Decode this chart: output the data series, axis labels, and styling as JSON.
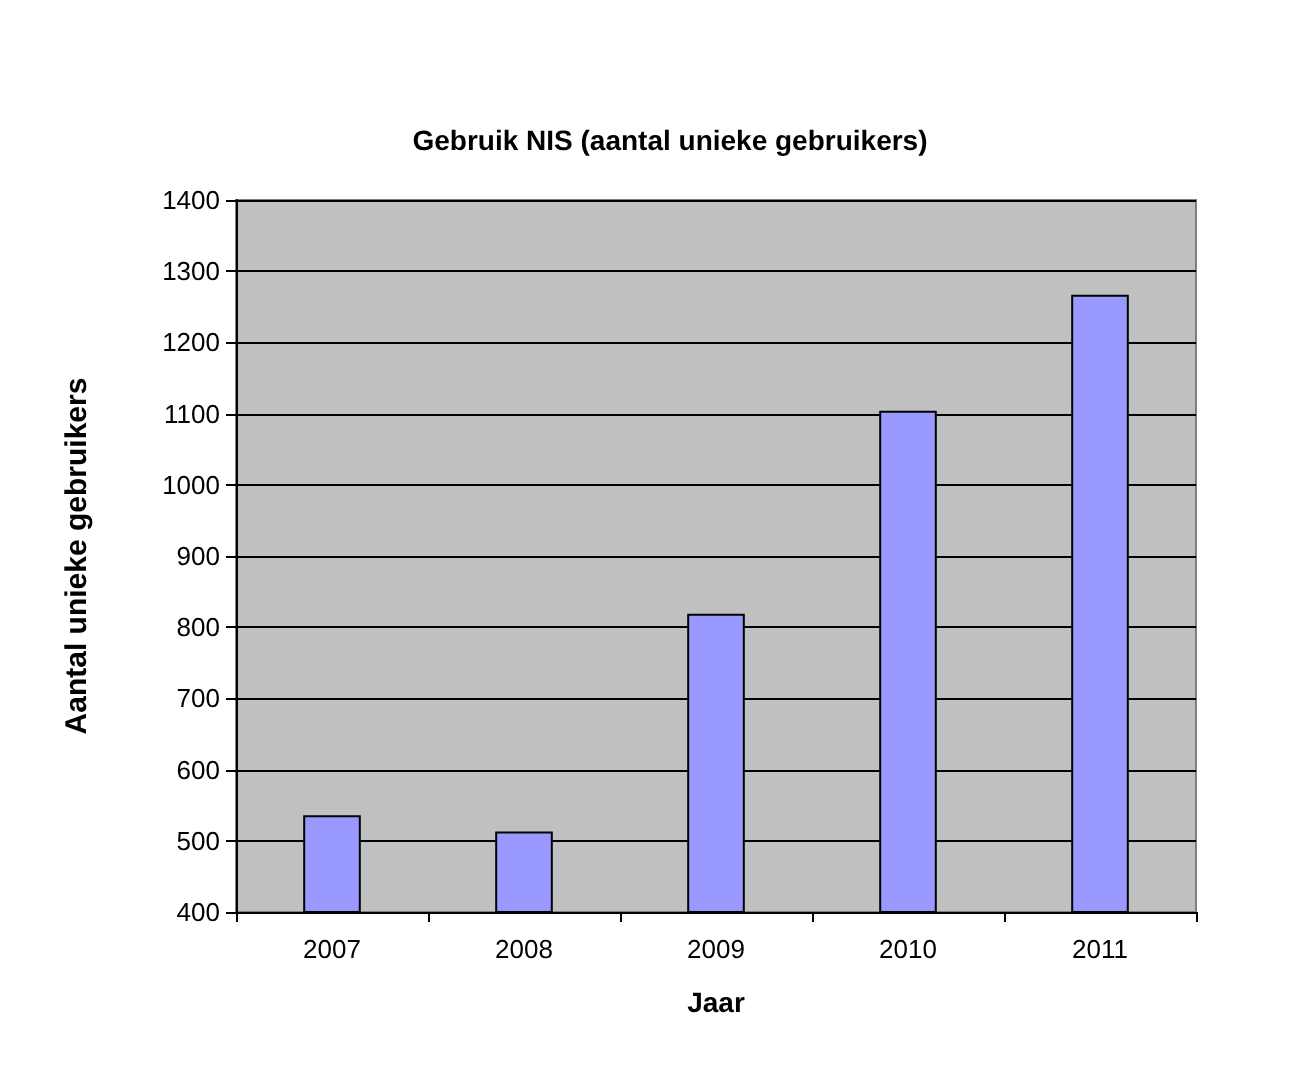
{
  "chart_data": {
    "type": "bar",
    "title": "Gebruik NIS (aantal unieke gebruikers)",
    "xlabel": "Jaar",
    "ylabel": "Aantal unieke gebruikers",
    "categories": [
      "2007",
      "2008",
      "2009",
      "2010",
      "2011"
    ],
    "values": [
      536,
      513,
      819,
      1104,
      1267
    ],
    "color": "#9999ff",
    "ylim": [
      400,
      1400
    ],
    "yticks": [
      400,
      500,
      600,
      700,
      800,
      900,
      1000,
      1100,
      1200,
      1300,
      1400
    ],
    "grid": "y"
  }
}
